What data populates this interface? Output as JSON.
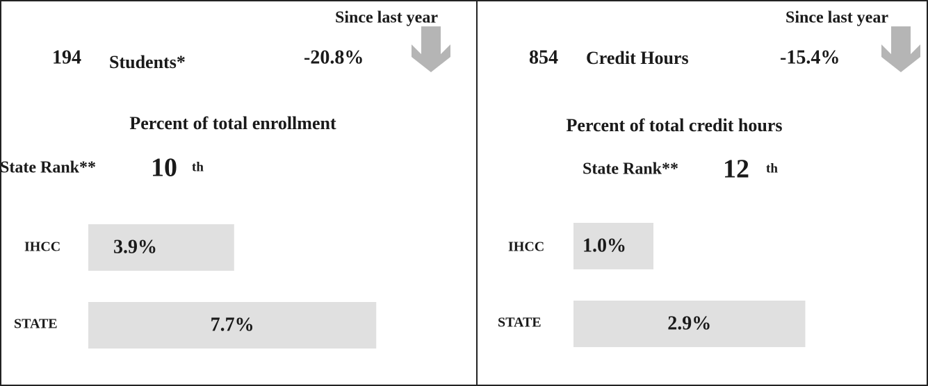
{
  "chart_data": [
    {
      "type": "bar",
      "change_label": "Since last year",
      "count": 194,
      "count_label": "Students*",
      "change": "-20.8%",
      "subtitle": "Percent of total enrollment",
      "rank_label": "State Rank**",
      "rank": 10,
      "rank_suffix": "th",
      "categories": [
        "IHCC",
        "STATE"
      ],
      "values": [
        3.9,
        7.7
      ],
      "value_labels": [
        "3.9%",
        "7.7%"
      ],
      "color": "#e0e0e0"
    },
    {
      "type": "bar",
      "change_label": "Since last year",
      "count": 854,
      "count_label": "Credit Hours",
      "change": "-15.4%",
      "subtitle": "Percent of total credit hours",
      "rank_label": "State Rank**",
      "rank": 12,
      "rank_suffix": "th",
      "categories": [
        "IHCC",
        "STATE"
      ],
      "values": [
        1.0,
        2.9
      ],
      "value_labels": [
        "1.0%",
        "2.9%"
      ],
      "color": "#e0e0e0"
    }
  ]
}
